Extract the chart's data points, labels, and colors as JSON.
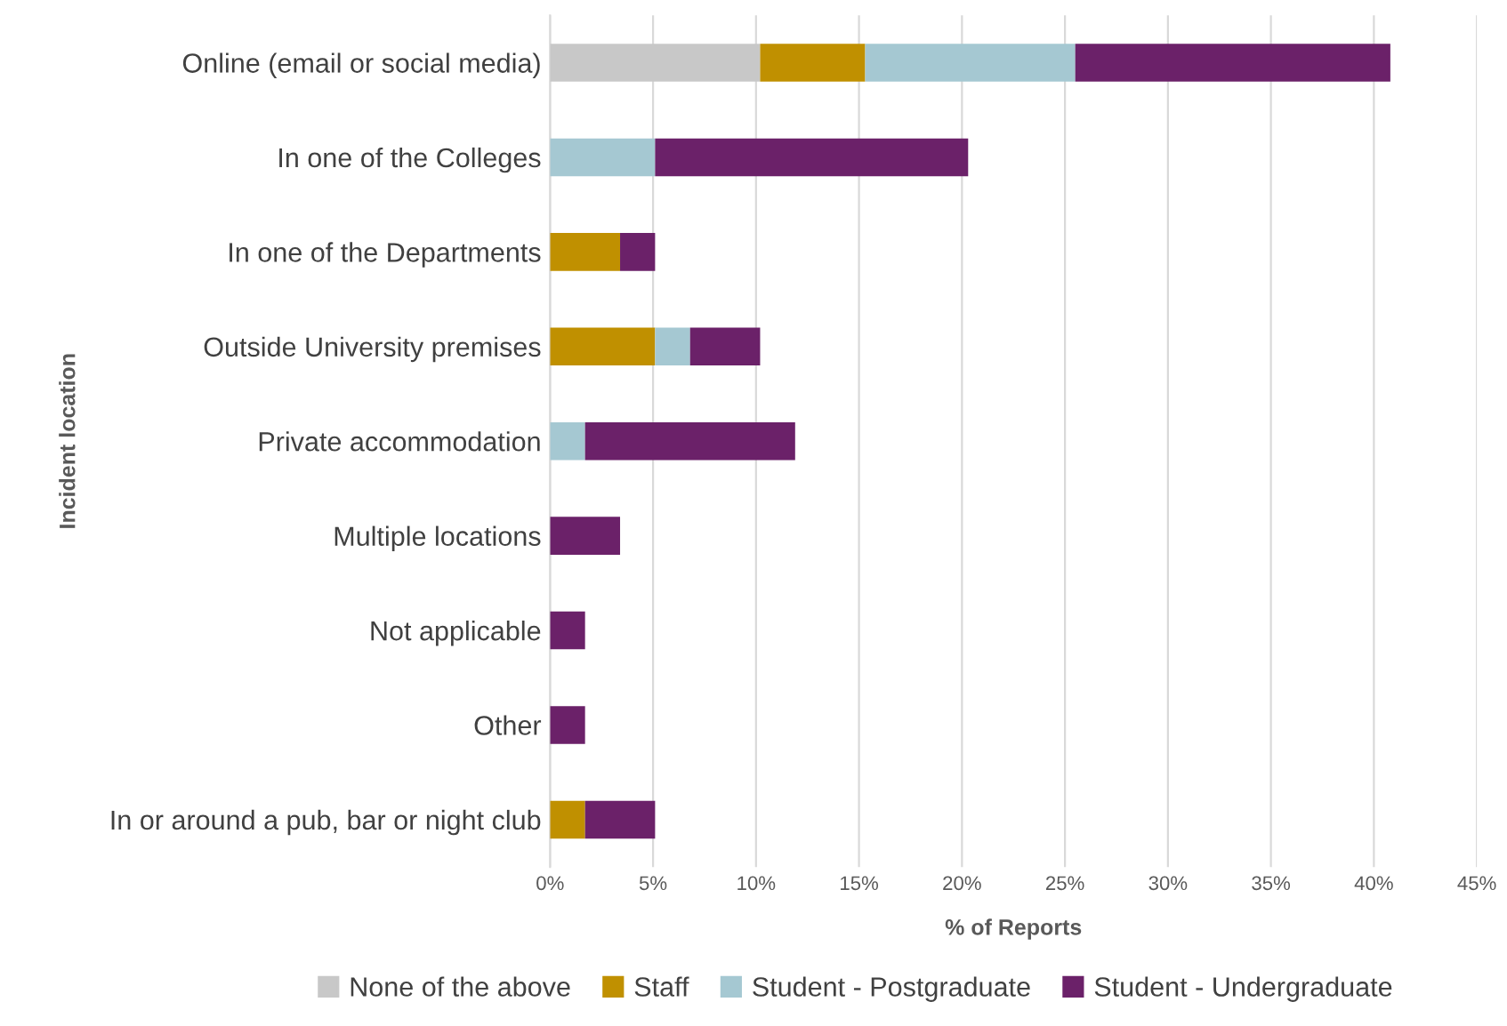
{
  "chart_data": {
    "type": "bar",
    "orientation": "horizontal",
    "stacked": true,
    "xlabel": "% of Reports",
    "ylabel": "Incident location",
    "categories": [
      "Online (email or social media)",
      "In one of the Colleges",
      "In one of the Departments",
      "Outside University premises",
      "Private accommodation",
      "Multiple locations",
      "Not applicable",
      "Other",
      "In or around a pub, bar or night club"
    ],
    "series": [
      {
        "name": "None of the above",
        "color": "#c8c8c8",
        "values": [
          10.2,
          null,
          null,
          null,
          null,
          null,
          null,
          null,
          null
        ]
      },
      {
        "name": "Staff",
        "color": "#c09000",
        "values": [
          5.1,
          null,
          3.4,
          5.1,
          null,
          null,
          null,
          null,
          1.7
        ]
      },
      {
        "name": "Student - Postgraduate",
        "color": "#a5c8d2",
        "values": [
          10.2,
          5.1,
          null,
          1.7,
          1.7,
          null,
          null,
          null,
          null
        ]
      },
      {
        "name": "Student - Undergraduate",
        "color": "#6b2169",
        "values": [
          15.3,
          15.2,
          1.7,
          3.4,
          10.2,
          3.4,
          1.7,
          1.7,
          3.4
        ]
      }
    ],
    "xlim": [
      0,
      45
    ],
    "xticks": [
      {
        "value": 0,
        "label": "0%"
      },
      {
        "value": 5,
        "label": "5%"
      },
      {
        "value": 10,
        "label": "10%"
      },
      {
        "value": 15,
        "label": "15%"
      },
      {
        "value": 20,
        "label": "20%"
      },
      {
        "value": 25,
        "label": "25%"
      },
      {
        "value": 30,
        "label": "30%"
      },
      {
        "value": 35,
        "label": "35%"
      },
      {
        "value": 40,
        "label": "40%"
      },
      {
        "value": 45,
        "label": "45%"
      }
    ],
    "grid": "x",
    "legend": "bottom"
  }
}
